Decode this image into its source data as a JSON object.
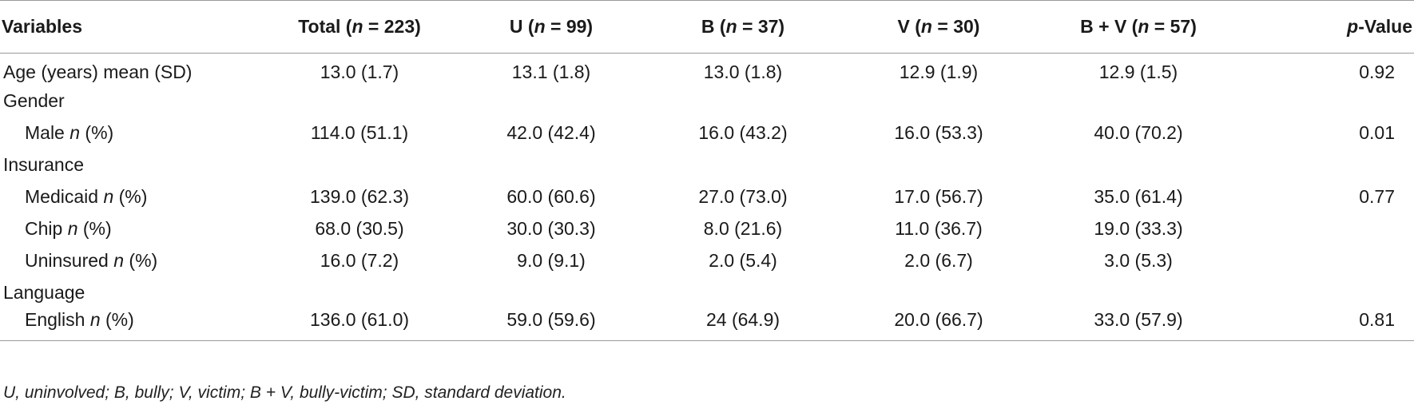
{
  "table": {
    "headers": [
      {
        "pre": "Variables",
        "ital": "",
        "post": ""
      },
      {
        "pre": "Total (",
        "ital": "n",
        "post": " = 223)"
      },
      {
        "pre": "U (",
        "ital": "n",
        "post": " = 99)"
      },
      {
        "pre": "B (",
        "ital": "n",
        "post": " = 37)"
      },
      {
        "pre": "V (",
        "ital": "n",
        "post": " = 30)"
      },
      {
        "pre": "B + V (",
        "ital": "n",
        "post": " = 57)"
      },
      {
        "pre": "",
        "ital": "p",
        "post": "-Value"
      }
    ],
    "rows": [
      {
        "label": "Age (years) mean (SD)",
        "label_ital": "",
        "label_post": "",
        "sub": false,
        "values": [
          "13.0 (1.7)",
          "13.1 (1.8)",
          "13.0 (1.8)",
          "12.9 (1.9)",
          "12.9 (1.5)",
          "0.92"
        ]
      },
      {
        "label": "Gender",
        "label_ital": "",
        "label_post": "",
        "sub": false,
        "values": [
          "",
          "",
          "",
          "",
          "",
          ""
        ]
      },
      {
        "label": "Male ",
        "label_ital": "n",
        "label_post": " (%)",
        "sub": true,
        "values": [
          "114.0 (51.1)",
          "42.0 (42.4)",
          "16.0 (43.2)",
          "16.0 (53.3)",
          "40.0 (70.2)",
          "0.01"
        ]
      },
      {
        "label": "Insurance",
        "label_ital": "",
        "label_post": "",
        "sub": false,
        "values": [
          "",
          "",
          "",
          "",
          "",
          ""
        ]
      },
      {
        "label": "Medicaid ",
        "label_ital": "n",
        "label_post": " (%)",
        "sub": true,
        "values": [
          "139.0 (62.3)",
          "60.0 (60.6)",
          "27.0 (73.0)",
          "17.0 (56.7)",
          "35.0 (61.4)",
          "0.77"
        ]
      },
      {
        "label": "Chip ",
        "label_ital": "n",
        "label_post": " (%)",
        "sub": true,
        "values": [
          "68.0 (30.5)",
          "30.0 (30.3)",
          "8.0 (21.6)",
          "11.0 (36.7)",
          "19.0 (33.3)",
          ""
        ]
      },
      {
        "label": "Uninsured ",
        "label_ital": "n",
        "label_post": " (%)",
        "sub": true,
        "values": [
          "16.0 (7.2)",
          "9.0 (9.1)",
          "2.0 (5.4)",
          "2.0 (6.7)",
          "3.0 (5.3)",
          ""
        ]
      },
      {
        "label": "Language",
        "label_ital": "",
        "label_post": "",
        "sub": false,
        "values": [
          "",
          "",
          "",
          "",
          "",
          ""
        ]
      },
      {
        "label": "English ",
        "label_ital": "n",
        "label_post": " (%)",
        "sub": true,
        "values": [
          "136.0 (61.0)",
          "59.0 (59.6)",
          "24 (64.9)",
          "20.0 (66.7)",
          "33.0 (57.9)",
          "0.81"
        ]
      }
    ]
  },
  "footnote": "U, uninvolved; B, bully; V, victim; B + V, bully-victim; SD, standard deviation."
}
